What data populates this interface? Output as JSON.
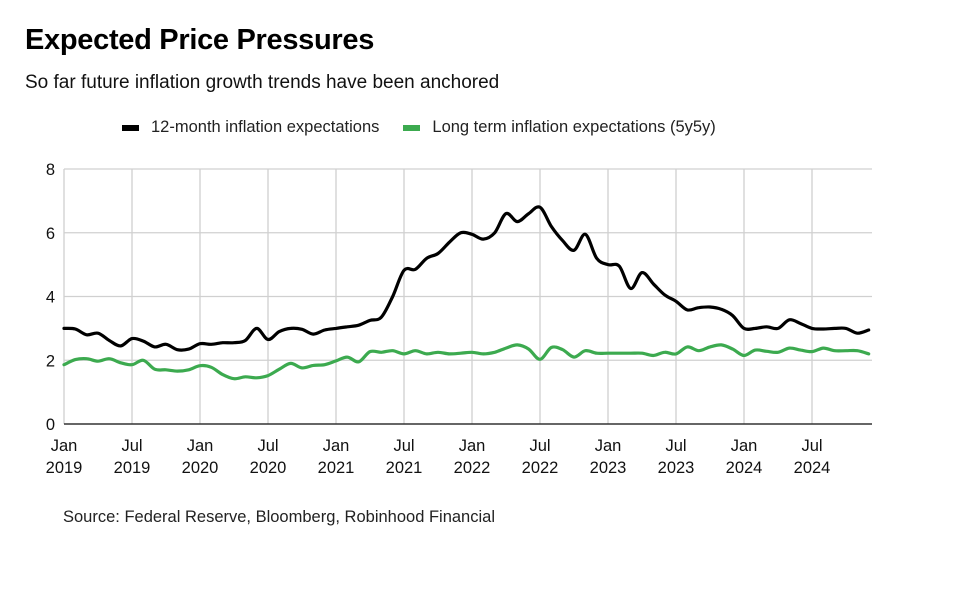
{
  "header": {
    "title": "Expected Price Pressures",
    "subtitle": "So far future inflation growth trends have been anchored"
  },
  "legend": {
    "items": [
      {
        "label": "12-month inflation expectations",
        "color": "#000000"
      },
      {
        "label": "Long term inflation expectations (5y5y)",
        "color": "#3caa4f"
      }
    ]
  },
  "footer": {
    "source": "Source: Federal Reserve, Bloomberg, Robinhood Financial"
  },
  "chart_data": {
    "type": "line",
    "title": "Expected Price Pressures",
    "subtitle": "So far future inflation growth trends have been anchored",
    "xlabel": "",
    "ylabel": "",
    "ylim": [
      0,
      8
    ],
    "yticks": [
      0,
      2,
      4,
      6,
      8
    ],
    "grid": true,
    "legend_position": "top",
    "x_start": "Jan 2019",
    "x_end": "Dec 2024",
    "x_frequency": "monthly",
    "xticks": [
      {
        "month_index": 0,
        "line1": "Jan",
        "line2": "2019"
      },
      {
        "month_index": 6,
        "line1": "Jul",
        "line2": "2019"
      },
      {
        "month_index": 12,
        "line1": "Jan",
        "line2": "2020"
      },
      {
        "month_index": 18,
        "line1": "Jul",
        "line2": "2020"
      },
      {
        "month_index": 24,
        "line1": "Jan",
        "line2": "2021"
      },
      {
        "month_index": 30,
        "line1": "Jul",
        "line2": "2021"
      },
      {
        "month_index": 36,
        "line1": "Jan",
        "line2": "2022"
      },
      {
        "month_index": 42,
        "line1": "Jul",
        "line2": "2022"
      },
      {
        "month_index": 48,
        "line1": "Jan",
        "line2": "2023"
      },
      {
        "month_index": 54,
        "line1": "Jul",
        "line2": "2023"
      },
      {
        "month_index": 60,
        "line1": "Jan",
        "line2": "2024"
      },
      {
        "month_index": 66,
        "line1": "Jul",
        "line2": "2024"
      }
    ],
    "series": [
      {
        "name": "12-month inflation expectations",
        "color": "#000000",
        "values": [
          3.0,
          2.98,
          2.8,
          2.85,
          2.62,
          2.45,
          2.68,
          2.6,
          2.42,
          2.5,
          2.33,
          2.35,
          2.52,
          2.5,
          2.55,
          2.55,
          2.62,
          3.0,
          2.65,
          2.9,
          3.0,
          2.97,
          2.82,
          2.95,
          3.0,
          3.05,
          3.1,
          3.25,
          3.35,
          4.0,
          4.82,
          4.85,
          5.2,
          5.35,
          5.7,
          6.0,
          5.95,
          5.8,
          6.0,
          6.6,
          6.35,
          6.6,
          6.8,
          6.2,
          5.75,
          5.45,
          5.95,
          5.2,
          5.0,
          4.95,
          4.25,
          4.75,
          4.4,
          4.05,
          3.85,
          3.58,
          3.65,
          3.67,
          3.6,
          3.4,
          3.0,
          3.0,
          3.05,
          3.0,
          3.27,
          3.15,
          3.0,
          2.98,
          3.0,
          3.0,
          2.85,
          2.95
        ]
      },
      {
        "name": "Long term inflation expectations (5y5y)",
        "color": "#3caa4f",
        "values": [
          1.86,
          2.02,
          2.05,
          1.97,
          2.05,
          1.92,
          1.86,
          2.0,
          1.72,
          1.7,
          1.66,
          1.7,
          1.83,
          1.78,
          1.55,
          1.42,
          1.48,
          1.45,
          1.52,
          1.72,
          1.9,
          1.76,
          1.84,
          1.86,
          1.98,
          2.1,
          1.95,
          2.27,
          2.25,
          2.3,
          2.2,
          2.3,
          2.2,
          2.25,
          2.2,
          2.22,
          2.25,
          2.2,
          2.25,
          2.38,
          2.48,
          2.35,
          2.03,
          2.4,
          2.33,
          2.1,
          2.3,
          2.22,
          2.22,
          2.22,
          2.22,
          2.22,
          2.15,
          2.25,
          2.2,
          2.42,
          2.3,
          2.42,
          2.48,
          2.35,
          2.15,
          2.32,
          2.28,
          2.25,
          2.38,
          2.32,
          2.27,
          2.38,
          2.3,
          2.3,
          2.3,
          2.2
        ]
      }
    ]
  }
}
